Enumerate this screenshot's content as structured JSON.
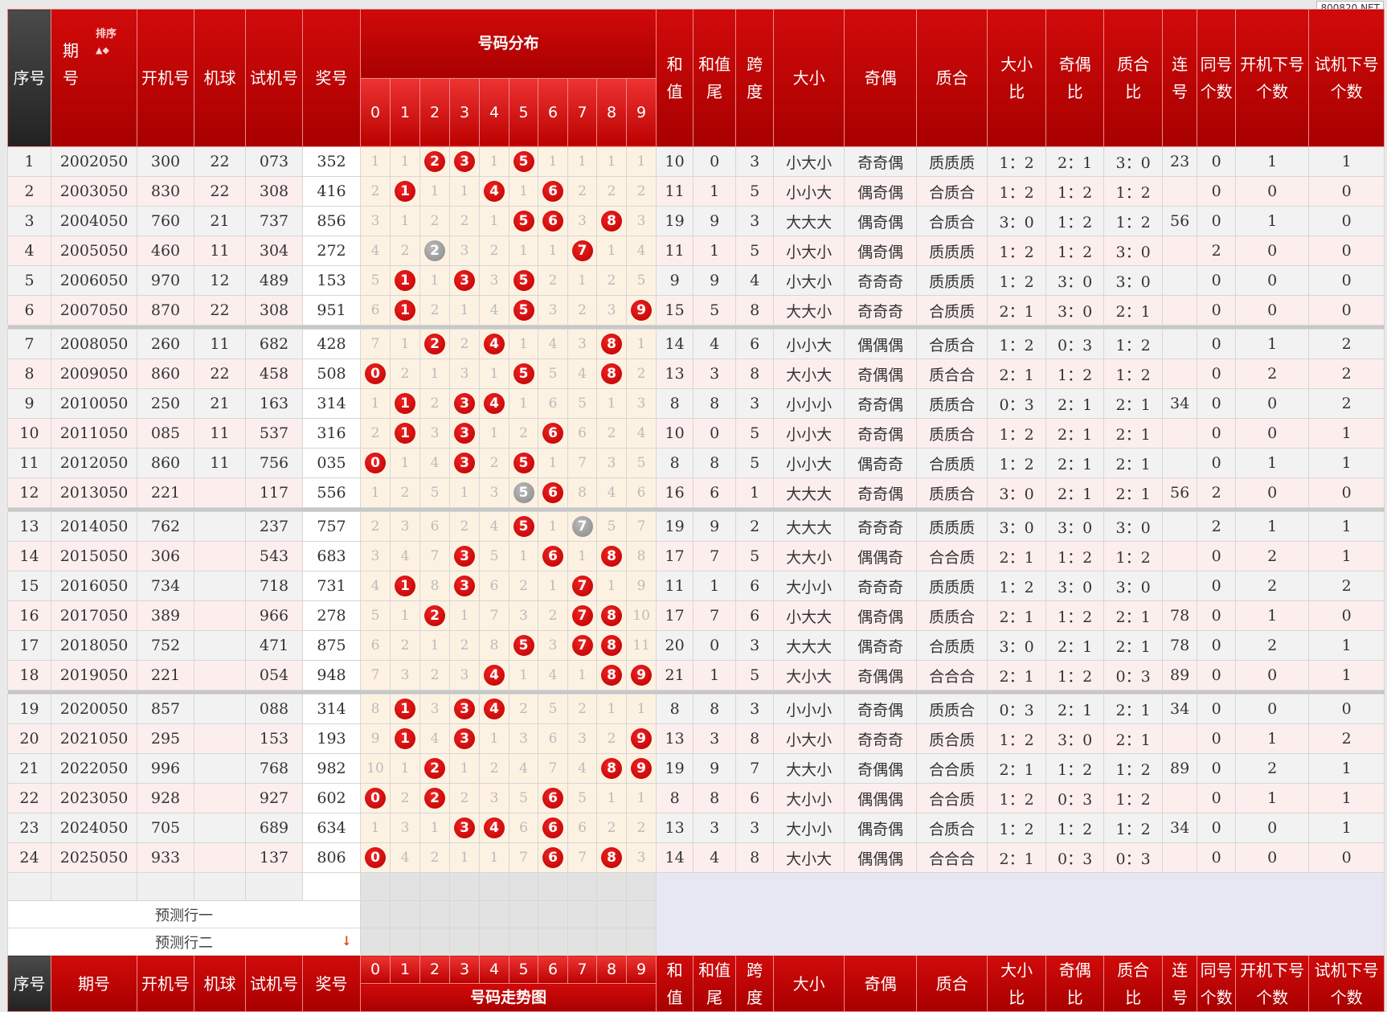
{
  "watermark": "800820.NET",
  "header": {
    "seq": "序号",
    "period": "期\n号",
    "sort_label": "排序",
    "kaiji": "开机号",
    "jiqiu": "机球",
    "shiji": "试机号",
    "jiang": "奖号",
    "dist_group": "号码分布",
    "digits": [
      "0",
      "1",
      "2",
      "3",
      "4",
      "5",
      "6",
      "7",
      "8",
      "9"
    ],
    "sum": "和\n值",
    "tail": "和值\n尾",
    "span": "跨\n度",
    "dx": "大小",
    "jo": "奇偶",
    "zh": "质合",
    "dxb": "大小\n比",
    "job": "奇偶\n比",
    "zhb": "质合\n比",
    "lian": "连\n号",
    "tong": "同号\n个数",
    "kxia": "开机下号\n个数",
    "sxia": "试机下号\n个数"
  },
  "footer": {
    "seq": "序号",
    "period": "期号",
    "trend_group": "号码走势图"
  },
  "predict": {
    "row1": "预测行一",
    "row2": "预测行二"
  },
  "colors": {
    "header_red": "#c00000",
    "ball_red": "#cc0000",
    "ball_gray": "#999999",
    "digit_bg": "#fdf2e2"
  },
  "rows": [
    {
      "seq": "1",
      "period": "2002050",
      "kaiji": "300",
      "jiqiu": "22",
      "shiji": "073",
      "jiang": "352",
      "dist": [
        "1",
        "1",
        "2",
        "3",
        "1",
        "5",
        "1",
        "1",
        "1",
        "1"
      ],
      "sum": "10",
      "tail": "0",
      "span": "3",
      "dx": "小大小",
      "jo": "奇奇偶",
      "zh": "质质质",
      "dxb": "1：2",
      "job": "2：1",
      "zhb": "3：0",
      "lian": "23",
      "tong": "0",
      "kxia": "1",
      "sxia": "1"
    },
    {
      "seq": "2",
      "period": "2003050",
      "kaiji": "830",
      "jiqiu": "22",
      "shiji": "308",
      "jiang": "416",
      "dist": [
        "2",
        "1",
        "1",
        "1",
        "4",
        "1",
        "6",
        "2",
        "2",
        "2"
      ],
      "sum": "11",
      "tail": "1",
      "span": "5",
      "dx": "小小大",
      "jo": "偶奇偶",
      "zh": "合质合",
      "dxb": "1：2",
      "job": "1：2",
      "zhb": "1：2",
      "lian": "",
      "tong": "0",
      "kxia": "0",
      "sxia": "0"
    },
    {
      "seq": "3",
      "period": "2004050",
      "kaiji": "760",
      "jiqiu": "21",
      "shiji": "737",
      "jiang": "856",
      "dist": [
        "3",
        "1",
        "2",
        "2",
        "1",
        "5",
        "6",
        "3",
        "8",
        "3"
      ],
      "sum": "19",
      "tail": "9",
      "span": "3",
      "dx": "大大大",
      "jo": "偶奇偶",
      "zh": "合质合",
      "dxb": "3：0",
      "job": "1：2",
      "zhb": "1：2",
      "lian": "56",
      "tong": "0",
      "kxia": "1",
      "sxia": "0"
    },
    {
      "seq": "4",
      "period": "2005050",
      "kaiji": "460",
      "jiqiu": "11",
      "shiji": "304",
      "jiang": "272",
      "dist": [
        "4",
        "2",
        "2",
        "3",
        "2",
        "1",
        "1",
        "7",
        "1",
        "4"
      ],
      "sum": "11",
      "tail": "1",
      "span": "5",
      "dx": "小大小",
      "jo": "偶奇偶",
      "zh": "质质质",
      "dxb": "1：2",
      "job": "1：2",
      "zhb": "3：0",
      "lian": "",
      "tong": "2",
      "kxia": "0",
      "sxia": "0"
    },
    {
      "seq": "5",
      "period": "2006050",
      "kaiji": "970",
      "jiqiu": "12",
      "shiji": "489",
      "jiang": "153",
      "dist": [
        "5",
        "1",
        "1",
        "3",
        "3",
        "5",
        "2",
        "1",
        "2",
        "5"
      ],
      "sum": "9",
      "tail": "9",
      "span": "4",
      "dx": "小大小",
      "jo": "奇奇奇",
      "zh": "质质质",
      "dxb": "1：2",
      "job": "3：0",
      "zhb": "3：0",
      "lian": "",
      "tong": "0",
      "kxia": "0",
      "sxia": "0"
    },
    {
      "seq": "6",
      "period": "2007050",
      "kaiji": "870",
      "jiqiu": "22",
      "shiji": "308",
      "jiang": "951",
      "dist": [
        "6",
        "1",
        "2",
        "1",
        "4",
        "5",
        "3",
        "2",
        "3",
        "9"
      ],
      "sum": "15",
      "tail": "5",
      "span": "8",
      "dx": "大大小",
      "jo": "奇奇奇",
      "zh": "合质质",
      "dxb": "2：1",
      "job": "3：0",
      "zhb": "2：1",
      "lian": "",
      "tong": "0",
      "kxia": "0",
      "sxia": "0"
    },
    {
      "seq": "7",
      "period": "2008050",
      "kaiji": "260",
      "jiqiu": "11",
      "shiji": "682",
      "jiang": "428",
      "dist": [
        "7",
        "1",
        "2",
        "2",
        "4",
        "1",
        "4",
        "3",
        "8",
        "1"
      ],
      "sum": "14",
      "tail": "4",
      "span": "6",
      "dx": "小小大",
      "jo": "偶偶偶",
      "zh": "合质合",
      "dxb": "1：2",
      "job": "0：3",
      "zhb": "1：2",
      "lian": "",
      "tong": "0",
      "kxia": "1",
      "sxia": "2"
    },
    {
      "seq": "8",
      "period": "2009050",
      "kaiji": "860",
      "jiqiu": "22",
      "shiji": "458",
      "jiang": "508",
      "dist": [
        "0",
        "2",
        "1",
        "3",
        "1",
        "5",
        "5",
        "4",
        "8",
        "2"
      ],
      "sum": "13",
      "tail": "3",
      "span": "8",
      "dx": "大小大",
      "jo": "奇偶偶",
      "zh": "质合合",
      "dxb": "2：1",
      "job": "1：2",
      "zhb": "1：2",
      "lian": "",
      "tong": "0",
      "kxia": "2",
      "sxia": "2"
    },
    {
      "seq": "9",
      "period": "2010050",
      "kaiji": "250",
      "jiqiu": "21",
      "shiji": "163",
      "jiang": "314",
      "dist": [
        "1",
        "1",
        "2",
        "3",
        "4",
        "1",
        "6",
        "5",
        "1",
        "3"
      ],
      "sum": "8",
      "tail": "8",
      "span": "3",
      "dx": "小小小",
      "jo": "奇奇偶",
      "zh": "质质合",
      "dxb": "0：3",
      "job": "2：1",
      "zhb": "2：1",
      "lian": "34",
      "tong": "0",
      "kxia": "0",
      "sxia": "2"
    },
    {
      "seq": "10",
      "period": "2011050",
      "kaiji": "085",
      "jiqiu": "11",
      "shiji": "537",
      "jiang": "316",
      "dist": [
        "2",
        "1",
        "3",
        "3",
        "1",
        "2",
        "6",
        "6",
        "2",
        "4"
      ],
      "sum": "10",
      "tail": "0",
      "span": "5",
      "dx": "小小大",
      "jo": "奇奇偶",
      "zh": "质质合",
      "dxb": "1：2",
      "job": "2：1",
      "zhb": "2：1",
      "lian": "",
      "tong": "0",
      "kxia": "0",
      "sxia": "1"
    },
    {
      "seq": "11",
      "period": "2012050",
      "kaiji": "860",
      "jiqiu": "11",
      "shiji": "756",
      "jiang": "035",
      "dist": [
        "0",
        "1",
        "4",
        "3",
        "2",
        "5",
        "1",
        "7",
        "3",
        "5"
      ],
      "sum": "8",
      "tail": "8",
      "span": "5",
      "dx": "小小大",
      "jo": "偶奇奇",
      "zh": "合质质",
      "dxb": "1：2",
      "job": "2：1",
      "zhb": "2：1",
      "lian": "",
      "tong": "0",
      "kxia": "1",
      "sxia": "1"
    },
    {
      "seq": "12",
      "period": "2013050",
      "kaiji": "221",
      "jiqiu": "",
      "shiji": "117",
      "jiang": "556",
      "dist": [
        "1",
        "2",
        "5",
        "1",
        "3",
        "5",
        "6",
        "8",
        "4",
        "6"
      ],
      "sum": "16",
      "tail": "6",
      "span": "1",
      "dx": "大大大",
      "jo": "奇奇偶",
      "zh": "质质合",
      "dxb": "3：0",
      "job": "2：1",
      "zhb": "2：1",
      "lian": "56",
      "tong": "2",
      "kxia": "0",
      "sxia": "0"
    },
    {
      "seq": "13",
      "period": "2014050",
      "kaiji": "762",
      "jiqiu": "",
      "shiji": "237",
      "jiang": "757",
      "dist": [
        "2",
        "3",
        "6",
        "2",
        "4",
        "5",
        "1",
        "7",
        "5",
        "7"
      ],
      "sum": "19",
      "tail": "9",
      "span": "2",
      "dx": "大大大",
      "jo": "奇奇奇",
      "zh": "质质质",
      "dxb": "3：0",
      "job": "3：0",
      "zhb": "3：0",
      "lian": "",
      "tong": "2",
      "kxia": "1",
      "sxia": "1"
    },
    {
      "seq": "14",
      "period": "2015050",
      "kaiji": "306",
      "jiqiu": "",
      "shiji": "543",
      "jiang": "683",
      "dist": [
        "3",
        "4",
        "7",
        "3",
        "5",
        "1",
        "6",
        "1",
        "8",
        "8"
      ],
      "sum": "17",
      "tail": "7",
      "span": "5",
      "dx": "大大小",
      "jo": "偶偶奇",
      "zh": "合合质",
      "dxb": "2：1",
      "job": "1：2",
      "zhb": "1：2",
      "lian": "",
      "tong": "0",
      "kxia": "2",
      "sxia": "1"
    },
    {
      "seq": "15",
      "period": "2016050",
      "kaiji": "734",
      "jiqiu": "",
      "shiji": "718",
      "jiang": "731",
      "dist": [
        "4",
        "1",
        "8",
        "3",
        "6",
        "2",
        "1",
        "7",
        "1",
        "9"
      ],
      "sum": "11",
      "tail": "1",
      "span": "6",
      "dx": "大小小",
      "jo": "奇奇奇",
      "zh": "质质质",
      "dxb": "1：2",
      "job": "3：0",
      "zhb": "3：0",
      "lian": "",
      "tong": "0",
      "kxia": "2",
      "sxia": "2"
    },
    {
      "seq": "16",
      "period": "2017050",
      "kaiji": "389",
      "jiqiu": "",
      "shiji": "966",
      "jiang": "278",
      "dist": [
        "5",
        "1",
        "2",
        "1",
        "7",
        "3",
        "2",
        "7",
        "8",
        "10"
      ],
      "sum": "17",
      "tail": "7",
      "span": "6",
      "dx": "小大大",
      "jo": "偶奇偶",
      "zh": "质质合",
      "dxb": "2：1",
      "job": "1：2",
      "zhb": "2：1",
      "lian": "78",
      "tong": "0",
      "kxia": "1",
      "sxia": "0"
    },
    {
      "seq": "17",
      "period": "2018050",
      "kaiji": "752",
      "jiqiu": "",
      "shiji": "471",
      "jiang": "875",
      "dist": [
        "6",
        "2",
        "1",
        "2",
        "8",
        "5",
        "3",
        "7",
        "8",
        "11"
      ],
      "sum": "20",
      "tail": "0",
      "span": "3",
      "dx": "大大大",
      "jo": "偶奇奇",
      "zh": "合质质",
      "dxb": "3：0",
      "job": "2：1",
      "zhb": "2：1",
      "lian": "78",
      "tong": "0",
      "kxia": "2",
      "sxia": "1"
    },
    {
      "seq": "18",
      "period": "2019050",
      "kaiji": "221",
      "jiqiu": "",
      "shiji": "054",
      "jiang": "948",
      "dist": [
        "7",
        "3",
        "2",
        "3",
        "4",
        "1",
        "4",
        "1",
        "8",
        "9"
      ],
      "sum": "21",
      "tail": "1",
      "span": "5",
      "dx": "大小大",
      "jo": "奇偶偶",
      "zh": "合合合",
      "dxb": "2：1",
      "job": "1：2",
      "zhb": "0：3",
      "lian": "89",
      "tong": "0",
      "kxia": "0",
      "sxia": "1"
    },
    {
      "seq": "19",
      "period": "2020050",
      "kaiji": "857",
      "jiqiu": "",
      "shiji": "088",
      "jiang": "314",
      "dist": [
        "8",
        "1",
        "3",
        "3",
        "4",
        "2",
        "5",
        "2",
        "1",
        "1"
      ],
      "sum": "8",
      "tail": "8",
      "span": "3",
      "dx": "小小小",
      "jo": "奇奇偶",
      "zh": "质质合",
      "dxb": "0：3",
      "job": "2：1",
      "zhb": "2：1",
      "lian": "34",
      "tong": "0",
      "kxia": "0",
      "sxia": "0"
    },
    {
      "seq": "20",
      "period": "2021050",
      "kaiji": "295",
      "jiqiu": "",
      "shiji": "153",
      "jiang": "193",
      "dist": [
        "9",
        "1",
        "4",
        "3",
        "1",
        "3",
        "6",
        "3",
        "2",
        "9"
      ],
      "sum": "13",
      "tail": "3",
      "span": "8",
      "dx": "小大小",
      "jo": "奇奇奇",
      "zh": "质合质",
      "dxb": "1：2",
      "job": "3：0",
      "zhb": "2：1",
      "lian": "",
      "tong": "0",
      "kxia": "1",
      "sxia": "2"
    },
    {
      "seq": "21",
      "period": "2022050",
      "kaiji": "996",
      "jiqiu": "",
      "shiji": "768",
      "jiang": "982",
      "dist": [
        "10",
        "1",
        "2",
        "1",
        "2",
        "4",
        "7",
        "4",
        "8",
        "9"
      ],
      "sum": "19",
      "tail": "9",
      "span": "7",
      "dx": "大大小",
      "jo": "奇偶偶",
      "zh": "合合质",
      "dxb": "2：1",
      "job": "1：2",
      "zhb": "1：2",
      "lian": "89",
      "tong": "0",
      "kxia": "2",
      "sxia": "1"
    },
    {
      "seq": "22",
      "period": "2023050",
      "kaiji": "928",
      "jiqiu": "",
      "shiji": "927",
      "jiang": "602",
      "dist": [
        "0",
        "2",
        "2",
        "2",
        "3",
        "5",
        "6",
        "5",
        "1",
        "1"
      ],
      "sum": "8",
      "tail": "8",
      "span": "6",
      "dx": "大小小",
      "jo": "偶偶偶",
      "zh": "合合质",
      "dxb": "1：2",
      "job": "0：3",
      "zhb": "1：2",
      "lian": "",
      "tong": "0",
      "kxia": "1",
      "sxia": "1"
    },
    {
      "seq": "23",
      "period": "2024050",
      "kaiji": "705",
      "jiqiu": "",
      "shiji": "689",
      "jiang": "634",
      "dist": [
        "1",
        "3",
        "1",
        "3",
        "4",
        "6",
        "6",
        "6",
        "2",
        "2"
      ],
      "sum": "13",
      "tail": "3",
      "span": "3",
      "dx": "大小小",
      "jo": "偶奇偶",
      "zh": "合质合",
      "dxb": "1：2",
      "job": "1：2",
      "zhb": "1：2",
      "lian": "34",
      "tong": "0",
      "kxia": "0",
      "sxia": "1"
    },
    {
      "seq": "24",
      "period": "2025050",
      "kaiji": "933",
      "jiqiu": "",
      "shiji": "137",
      "jiang": "806",
      "dist": [
        "0",
        "4",
        "2",
        "1",
        "1",
        "7",
        "6",
        "7",
        "8",
        "3"
      ],
      "sum": "14",
      "tail": "4",
      "span": "8",
      "dx": "大小大",
      "jo": "偶偶偶",
      "zh": "合合合",
      "dxb": "2：1",
      "job": "0：3",
      "zhb": "0：3",
      "lian": "",
      "tong": "0",
      "kxia": "0",
      "sxia": "0"
    }
  ]
}
